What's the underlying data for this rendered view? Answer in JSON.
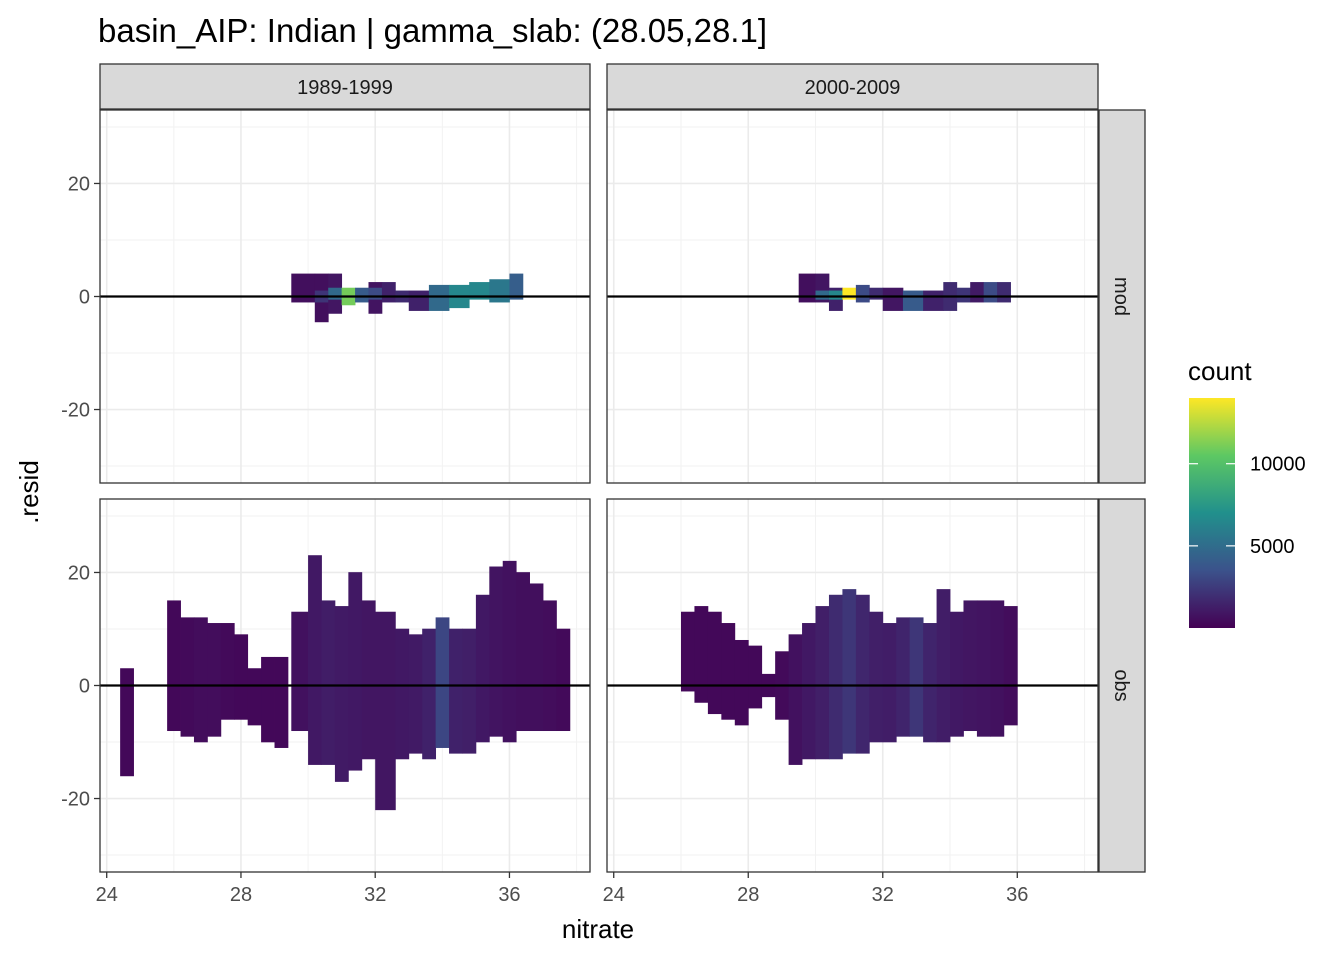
{
  "chart_data": {
    "type": "heatmap",
    "title": "basin_AIP: Indian | gamma_slab: (28.05,28.1]",
    "xlabel": "nitrate",
    "ylabel": ".resid",
    "xlim": [
      23.8,
      38.4
    ],
    "ylim": [
      -33,
      33
    ],
    "x_ticks": [
      24,
      28,
      32,
      36
    ],
    "y_ticks": [
      -20,
      0,
      20
    ],
    "bin_width": 0.44,
    "bin_height": 1.4,
    "column_facets": [
      "1989-1999",
      "2000-2009"
    ],
    "row_facets": [
      "mod",
      "obs"
    ],
    "legend": {
      "title": "count",
      "min": 0,
      "max": 14000,
      "ticks": [
        5000,
        10000
      ],
      "palette": "viridis",
      "colors": [
        "#440154",
        "#3b528b",
        "#21908c",
        "#5dc863",
        "#fde725"
      ]
    },
    "reference_line_y": 0,
    "grid": true,
    "panels": [
      {
        "col": "1989-1999",
        "row": "mod",
        "rect": [
          [
            29.5,
            30.2,
            -1,
            4,
            600
          ],
          [
            30.2,
            30.6,
            -4.5,
            4,
            600
          ],
          [
            30.2,
            30.6,
            -1,
            1,
            2200
          ],
          [
            30.6,
            31.0,
            -3,
            4,
            900
          ],
          [
            30.6,
            31.0,
            -0.5,
            1.5,
            4800
          ],
          [
            31.0,
            31.4,
            -1.5,
            1.5,
            11000
          ],
          [
            31.4,
            31.8,
            -1,
            1.5,
            4000
          ],
          [
            31.8,
            32.2,
            -3,
            2.5,
            800
          ],
          [
            31.8,
            32.2,
            -0.5,
            1.5,
            3200
          ],
          [
            32.2,
            32.6,
            -1,
            2.5,
            1400
          ],
          [
            32.6,
            33.0,
            -1,
            1,
            1800
          ],
          [
            33.0,
            33.6,
            -2.5,
            1,
            1400
          ],
          [
            33.6,
            34.2,
            -2.5,
            2,
            4800
          ],
          [
            34.2,
            34.8,
            -2,
            2,
            6500
          ],
          [
            34.8,
            35.4,
            -0.5,
            2.5,
            6500
          ],
          [
            35.4,
            36.0,
            -1,
            3,
            5600
          ],
          [
            36.0,
            36.4,
            -0.5,
            4,
            4200
          ]
        ]
      },
      {
        "col": "2000-2009",
        "row": "mod",
        "rect": [
          [
            29.5,
            30.0,
            -1,
            4,
            600
          ],
          [
            30.0,
            30.4,
            -1,
            4,
            900
          ],
          [
            30.0,
            30.4,
            -0.5,
            1,
            4800
          ],
          [
            30.4,
            30.8,
            -2.5,
            1.5,
            1400
          ],
          [
            30.4,
            30.8,
            -0.5,
            1,
            6500
          ],
          [
            30.8,
            31.2,
            -0.5,
            1.5,
            14000
          ],
          [
            31.2,
            31.6,
            -1,
            2,
            3200
          ],
          [
            31.6,
            32.0,
            -0.5,
            1.5,
            1800
          ],
          [
            32.0,
            32.6,
            -2.5,
            1.5,
            900
          ],
          [
            32.6,
            33.2,
            -2.5,
            1,
            4000
          ],
          [
            33.2,
            33.8,
            -2.5,
            1,
            1400
          ],
          [
            33.8,
            34.2,
            -2.5,
            2.5,
            1800
          ],
          [
            34.2,
            34.6,
            -1,
            1.5,
            2200
          ],
          [
            34.6,
            35.0,
            -1,
            2.5,
            1100
          ],
          [
            35.0,
            35.4,
            -1,
            2.5,
            3200
          ],
          [
            35.4,
            35.8,
            -1,
            2.5,
            1800
          ]
        ]
      },
      {
        "col": "1989-1999",
        "row": "obs",
        "rect": [
          [
            24.4,
            24.8,
            -16,
            3,
            300
          ],
          [
            25.8,
            26.2,
            -8,
            15,
            300
          ],
          [
            26.2,
            26.6,
            -9,
            12,
            400
          ],
          [
            26.6,
            27.0,
            -10,
            12,
            500
          ],
          [
            27.0,
            27.4,
            -9,
            11,
            500
          ],
          [
            27.4,
            27.8,
            -6,
            11,
            400
          ],
          [
            27.8,
            28.2,
            -6,
            9,
            300
          ],
          [
            28.2,
            28.6,
            -7,
            3,
            300
          ],
          [
            28.6,
            29.0,
            -10,
            5,
            300
          ],
          [
            29.0,
            29.4,
            -11,
            5,
            300
          ],
          [
            29.5,
            30.0,
            -8,
            13,
            700
          ],
          [
            30.0,
            30.4,
            -14,
            23,
            1000
          ],
          [
            30.4,
            30.8,
            -14,
            15,
            1200
          ],
          [
            30.8,
            31.2,
            -17,
            14,
            1100
          ],
          [
            31.2,
            31.6,
            -15,
            20,
            1000
          ],
          [
            31.6,
            32.0,
            -13,
            15,
            900
          ],
          [
            32.0,
            32.6,
            -22,
            13,
            900
          ],
          [
            32.6,
            33.0,
            -13,
            10,
            1000
          ],
          [
            33.0,
            33.4,
            -12,
            9,
            1100
          ],
          [
            33.4,
            33.8,
            -13,
            10,
            1400
          ],
          [
            33.8,
            34.2,
            -11,
            12,
            3000
          ],
          [
            34.2,
            34.6,
            -12,
            10,
            1400
          ],
          [
            34.6,
            35.0,
            -12,
            10,
            1300
          ],
          [
            35.0,
            35.4,
            -10,
            16,
            1000
          ],
          [
            35.4,
            35.8,
            -9,
            21,
            800
          ],
          [
            35.8,
            36.2,
            -10,
            22,
            700
          ],
          [
            36.2,
            36.6,
            -8,
            20,
            600
          ],
          [
            36.6,
            37.0,
            -8,
            18,
            600
          ],
          [
            37.0,
            37.4,
            -8,
            15,
            500
          ],
          [
            37.4,
            37.8,
            -8,
            10,
            400
          ]
        ]
      },
      {
        "col": "2000-2009",
        "row": "obs",
        "rect": [
          [
            26.0,
            26.4,
            -1,
            13,
            300
          ],
          [
            26.4,
            26.8,
            -3,
            14,
            300
          ],
          [
            26.8,
            27.2,
            -5,
            13,
            300
          ],
          [
            27.2,
            27.6,
            -6,
            11,
            300
          ],
          [
            27.6,
            28.0,
            -7,
            8,
            300
          ],
          [
            28.0,
            28.4,
            -4,
            7,
            300
          ],
          [
            28.4,
            28.8,
            -2,
            2,
            300
          ],
          [
            28.8,
            29.2,
            -6,
            6,
            400
          ],
          [
            29.2,
            29.6,
            -14,
            9,
            700
          ],
          [
            29.6,
            30.0,
            -13,
            11,
            1000
          ],
          [
            30.0,
            30.4,
            -13,
            14,
            1300
          ],
          [
            30.4,
            30.8,
            -13,
            16,
            1800
          ],
          [
            30.8,
            31.2,
            -12,
            17,
            2300
          ],
          [
            31.2,
            31.6,
            -12,
            16,
            1600
          ],
          [
            31.6,
            32.0,
            -10,
            13,
            1300
          ],
          [
            32.0,
            32.4,
            -10,
            11,
            1200
          ],
          [
            32.4,
            32.8,
            -9,
            12,
            1500
          ],
          [
            32.8,
            33.2,
            -9,
            12,
            2300
          ],
          [
            33.2,
            33.6,
            -10,
            11,
            1500
          ],
          [
            33.6,
            34.0,
            -10,
            17,
            1200
          ],
          [
            34.0,
            34.4,
            -9,
            13,
            1000
          ],
          [
            34.4,
            34.8,
            -8,
            15,
            900
          ],
          [
            34.8,
            35.2,
            -9,
            15,
            800
          ],
          [
            35.2,
            35.6,
            -9,
            15,
            700
          ],
          [
            35.6,
            36.0,
            -7,
            14,
            500
          ]
        ]
      }
    ]
  }
}
